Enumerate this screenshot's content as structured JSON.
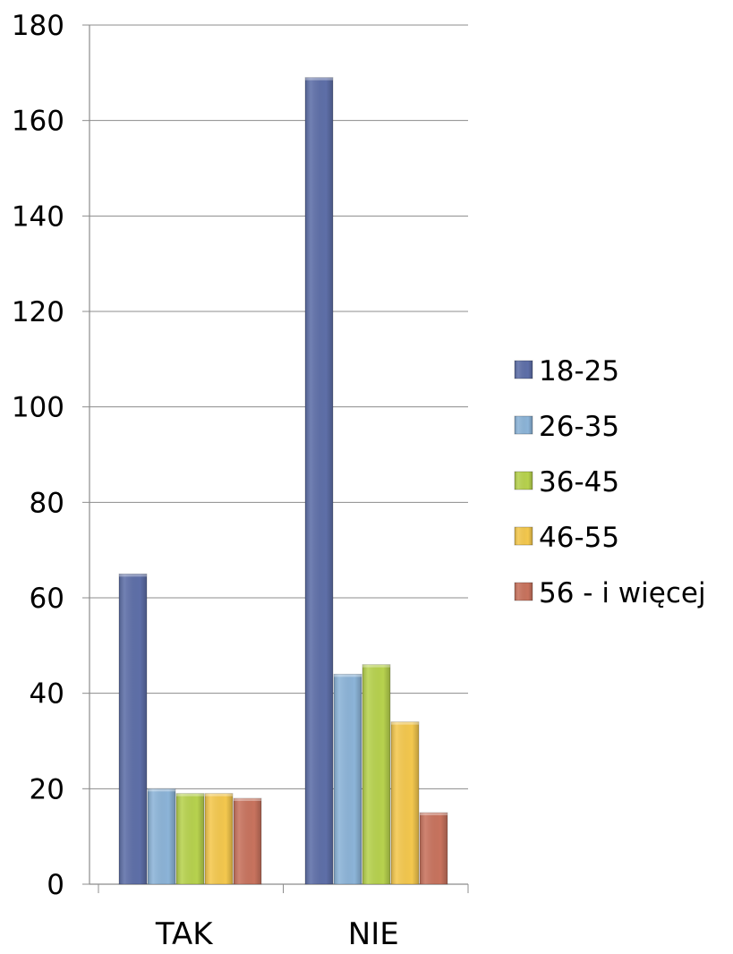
{
  "chart_data": {
    "type": "bar",
    "categories": [
      "TAK",
      "NIE"
    ],
    "series": [
      {
        "name": "18-25",
        "values": [
          65,
          169
        ],
        "color": "#5E6FA8"
      },
      {
        "name": "26-35",
        "values": [
          20,
          44
        ],
        "color": "#8CB4D8"
      },
      {
        "name": "36-45",
        "values": [
          19,
          46
        ],
        "color": "#B7D24E"
      },
      {
        "name": "46-55",
        "values": [
          19,
          34
        ],
        "color": "#F4C84E"
      },
      {
        "name": "56 - i więcej",
        "values": [
          18,
          15
        ],
        "color": "#C8735E"
      }
    ],
    "ylim": [
      0,
      180
    ],
    "yticks": [
      0,
      20,
      40,
      60,
      80,
      100,
      120,
      140,
      160,
      180
    ],
    "grid": true,
    "legend_position": "right",
    "title": "",
    "xlabel": "",
    "ylabel": ""
  }
}
